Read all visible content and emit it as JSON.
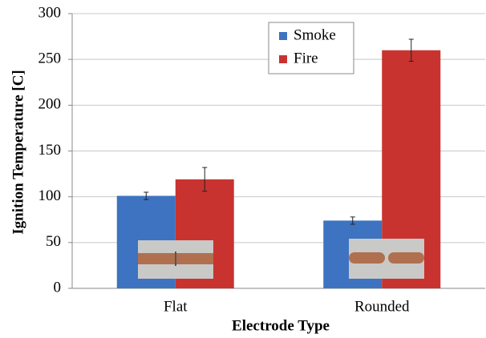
{
  "chart_data": {
    "type": "bar",
    "x_label": "Electrode Type",
    "y_label": "Ignition Temperature [C]",
    "categories": [
      "Flat",
      "Rounded"
    ],
    "series": [
      {
        "name": "Smoke",
        "color": "#3d73c0",
        "values": [
          101,
          74
        ],
        "errors": [
          4,
          4
        ]
      },
      {
        "name": "Fire",
        "color": "#c8332f",
        "values": [
          119,
          260
        ],
        "errors": [
          13,
          12
        ]
      }
    ],
    "ylim": [
      0,
      300
    ],
    "yticks": [
      0,
      50,
      100,
      150,
      200,
      250,
      300
    ],
    "grid": true,
    "legend": "top-right"
  }
}
